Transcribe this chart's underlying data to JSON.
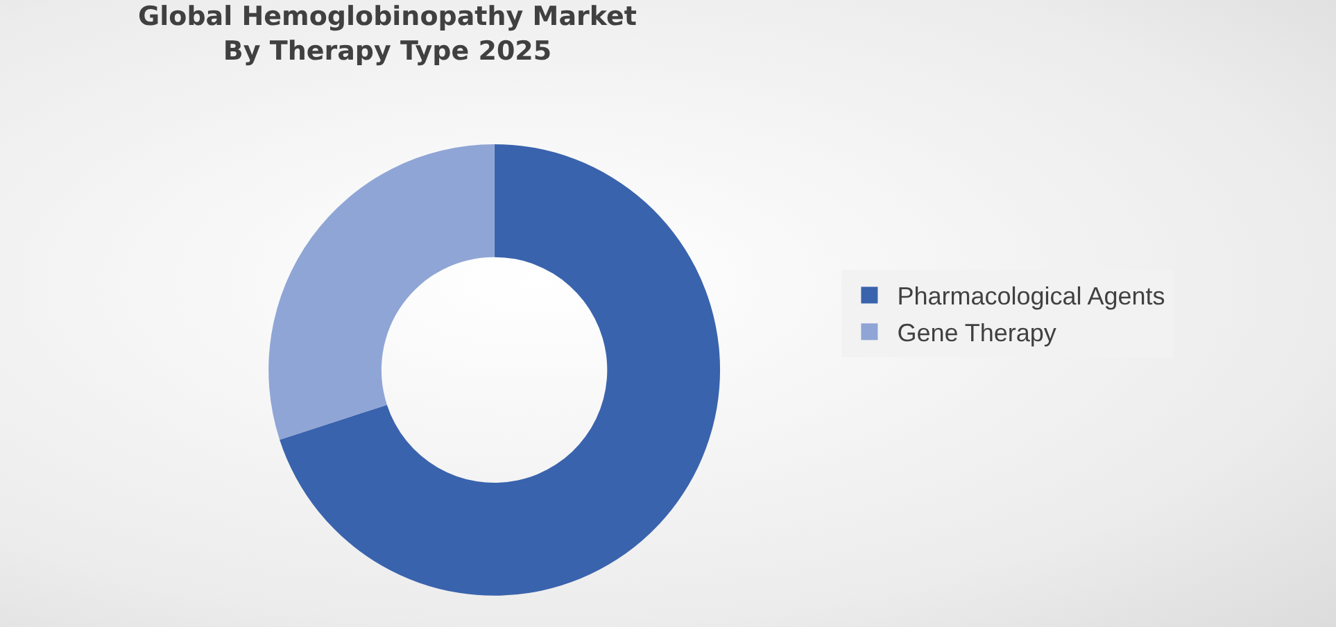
{
  "chart_data": {
    "type": "donut",
    "title": "Global Hemoglobinopathy Market\nBy Therapy Type 2025",
    "categories": [
      "Pharmacological Agents",
      "Gene Therapy"
    ],
    "values": [
      70,
      30
    ],
    "colors": [
      "#3a63ad",
      "#8fa5d6"
    ],
    "legend": "right"
  }
}
